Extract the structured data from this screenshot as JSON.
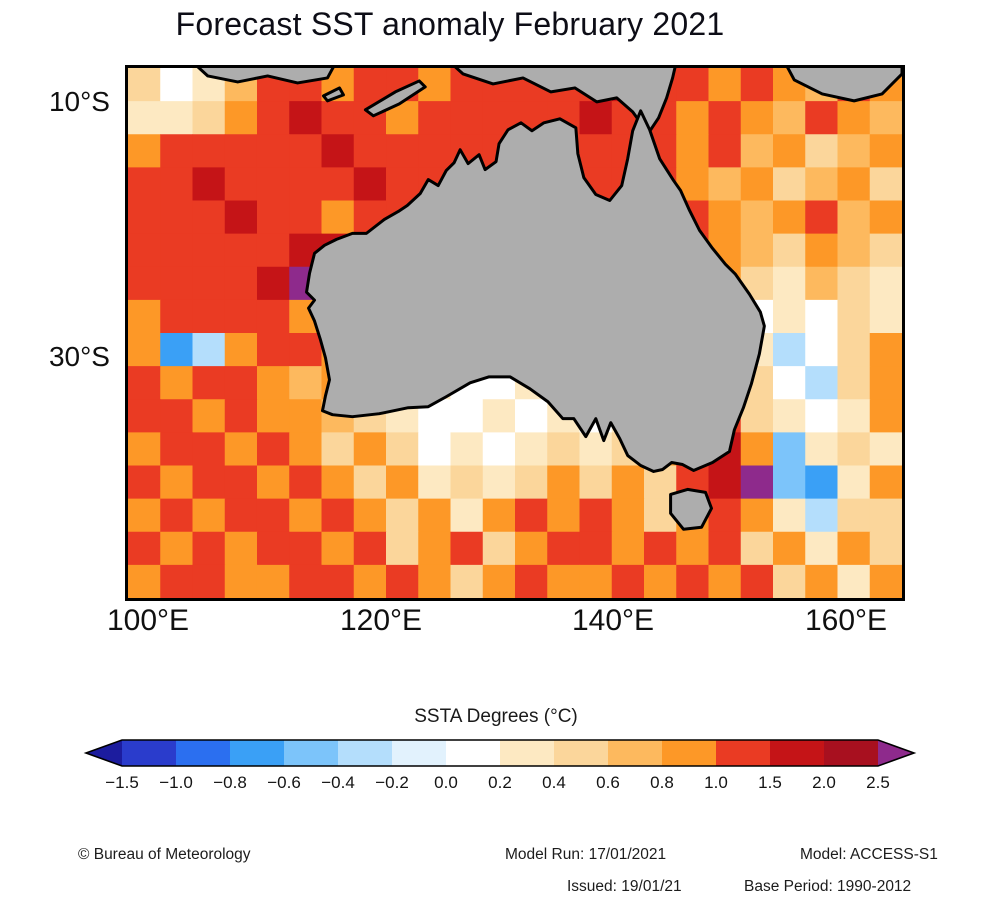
{
  "header": {
    "title": "Forecast SST anomaly February 2021"
  },
  "axes": {
    "x_ticks": [
      "100°E",
      "120°E",
      "140°E",
      "160°E"
    ],
    "y_ticks": [
      "10°S",
      "30°S"
    ]
  },
  "legend": {
    "title": "SSTA Degrees (°C)"
  },
  "footer": {
    "copyright": "© Bureau of Meteorology",
    "model_run": "Model Run: 17/01/2021",
    "model": "Model: ACCESS-S1",
    "issued": "Issued: 19/01/21",
    "base_period": "Base Period: 1990-2012"
  },
  "chart_data": {
    "type": "heatmap",
    "title": "Forecast SST anomaly February 2021",
    "units": "°C",
    "x_tick_labels": [
      "100°E",
      "120°E",
      "140°E",
      "160°E"
    ],
    "y_tick_labels": [
      "10°S",
      "30°S"
    ],
    "lon_range": [
      98.3,
      165.3
    ],
    "lat_range": [
      7.3,
      49.0
    ],
    "land_color": "#adadad",
    "coast_color": "#000000",
    "colorbar": {
      "title": "SSTA Degrees (°C)",
      "tick_labels": [
        "−1.5",
        "−1.0",
        "−0.8",
        "−0.6",
        "−0.4",
        "−0.2",
        "0.0",
        "0.2",
        "0.4",
        "0.6",
        "0.8",
        "1.0",
        "1.5",
        "2.0",
        "2.5"
      ],
      "thresholds": [
        -1.5,
        -1.0,
        -0.8,
        -0.6,
        -0.4,
        -0.2,
        0.0,
        0.2,
        0.4,
        0.6,
        0.8,
        1.0,
        1.5,
        2.0,
        2.5
      ],
      "colors": [
        "#1c1c9e",
        "#2a3ccc",
        "#2b6ff0",
        "#3aa0f6",
        "#7cc4fa",
        "#b4defc",
        "#e2f2fd",
        "#ffffff",
        "#fde9c2",
        "#fbd69b",
        "#fdb95e",
        "#fd9827",
        "#ea3b23",
        "#c51417",
        "#a8101f",
        "#8e2a8c"
      ]
    },
    "grid_layout": {
      "rows_north_to_south": true,
      "cols_west_to_east": true
    },
    "grid": [
      [
        0.5,
        0.1,
        0.3,
        0.7,
        1.2,
        1.2,
        0.9,
        1.2,
        1.2,
        0.9,
        1.2,
        1.3,
        1.2,
        1.2,
        1.3,
        1.6,
        1.2,
        1.2,
        0.9,
        1.2,
        0.9,
        0.7,
        1.2,
        0.9
      ],
      [
        0.3,
        0.3,
        0.5,
        0.9,
        1.2,
        1.6,
        1.2,
        1.2,
        0.9,
        1.2,
        1.2,
        1.2,
        1.3,
        1.2,
        1.6,
        1.2,
        1.2,
        0.9,
        1.2,
        0.9,
        0.7,
        1.2,
        0.9,
        0.7
      ],
      [
        0.9,
        1.2,
        1.2,
        1.3,
        1.2,
        1.2,
        1.6,
        1.2,
        1.2,
        1.2,
        1.2,
        1.1,
        1.2,
        1.2,
        1.2,
        1.3,
        1.2,
        0.9,
        1.2,
        0.7,
        0.9,
        0.5,
        0.7,
        0.9
      ],
      [
        1.2,
        1.3,
        1.6,
        1.2,
        1.2,
        1.2,
        1.2,
        1.6,
        1.2,
        1.2,
        1.2,
        1.2,
        1.2,
        1.2,
        1.3,
        1.2,
        1.2,
        0.9,
        0.7,
        0.9,
        0.5,
        0.7,
        0.9,
        0.5
      ],
      [
        1.2,
        1.1,
        1.2,
        1.6,
        1.2,
        1.2,
        0.9,
        1.2,
        1.2,
        1.2,
        1.2,
        1.2,
        1.2,
        1.2,
        1.2,
        1.2,
        1.2,
        1.1,
        0.9,
        0.7,
        0.9,
        1.2,
        0.7,
        0.9
      ],
      [
        1.2,
        1.2,
        1.1,
        1.2,
        1.3,
        1.6,
        1.6,
        1.2,
        1.2,
        1.2,
        1.2,
        1.2,
        1.2,
        1.2,
        1.2,
        1.2,
        1.2,
        1.2,
        0.9,
        0.7,
        0.5,
        0.9,
        0.7,
        0.5
      ],
      [
        1.2,
        1.1,
        1.2,
        1.2,
        1.8,
        2.6,
        1.2,
        1.2,
        1.2,
        1.2,
        1.2,
        1.2,
        1.2,
        1.2,
        1.2,
        1.2,
        1.2,
        1.2,
        0.9,
        0.5,
        0.3,
        0.7,
        0.5,
        0.3
      ],
      [
        0.9,
        1.2,
        1.2,
        1.1,
        1.2,
        0.9,
        1.2,
        1.2,
        1.2,
        1.2,
        1.2,
        1.2,
        1.2,
        1.2,
        1.2,
        1.2,
        1.2,
        1.2,
        0.5,
        0.1,
        0.3,
        0.1,
        0.5,
        0.3
      ],
      [
        0.9,
        -0.7,
        -0.3,
        0.9,
        1.2,
        1.1,
        0.9,
        1.2,
        1.2,
        1.2,
        1.2,
        1.2,
        1.2,
        1.2,
        1.2,
        1.2,
        1.2,
        0.9,
        0.5,
        0.3,
        -0.3,
        0.1,
        0.5,
        0.9
      ],
      [
        1.2,
        0.9,
        1.2,
        1.1,
        0.9,
        0.7,
        0.9,
        1.2,
        0.9,
        0.3,
        0.1,
        0.1,
        0.2,
        0.3,
        0.5,
        0.5,
        0.5,
        0.9,
        1.2,
        0.5,
        0.1,
        -0.3,
        0.5,
        0.9
      ],
      [
        1.2,
        1.2,
        0.9,
        1.2,
        0.9,
        0.9,
        0.7,
        0.5,
        0.3,
        0.1,
        0.1,
        0.2,
        0.1,
        0.3,
        0.1,
        0.3,
        0.5,
        0.9,
        1.2,
        0.5,
        0.3,
        0.1,
        0.3,
        0.9
      ],
      [
        0.9,
        1.2,
        1.2,
        0.9,
        1.2,
        0.9,
        0.5,
        0.9,
        0.5,
        0.1,
        0.3,
        0.1,
        0.2,
        0.5,
        0.3,
        0.5,
        0.9,
        1.2,
        1.6,
        0.9,
        -0.5,
        0.3,
        0.5,
        0.3
      ],
      [
        1.2,
        0.9,
        1.2,
        1.2,
        0.9,
        1.2,
        0.9,
        0.5,
        0.9,
        0.3,
        0.5,
        0.2,
        0.5,
        0.9,
        0.5,
        0.9,
        0.5,
        1.2,
        1.6,
        2.6,
        -0.5,
        -0.7,
        0.3,
        0.9
      ],
      [
        0.9,
        1.2,
        0.9,
        1.2,
        1.2,
        0.9,
        1.2,
        0.9,
        0.5,
        0.9,
        0.3,
        0.9,
        1.2,
        0.9,
        1.2,
        0.9,
        0.5,
        0.9,
        1.2,
        0.9,
        0.3,
        -0.3,
        0.5,
        0.5
      ],
      [
        1.2,
        0.9,
        1.2,
        0.9,
        1.2,
        1.2,
        0.9,
        1.2,
        0.5,
        0.9,
        1.2,
        0.5,
        0.9,
        1.2,
        1.2,
        0.9,
        1.2,
        0.9,
        1.2,
        0.5,
        0.9,
        0.3,
        0.9,
        0.5
      ],
      [
        0.9,
        1.2,
        1.2,
        0.9,
        0.9,
        1.2,
        1.2,
        0.9,
        1.2,
        0.9,
        0.5,
        0.9,
        1.2,
        0.9,
        0.9,
        1.2,
        0.9,
        1.2,
        0.9,
        1.2,
        0.5,
        0.9,
        0.3,
        0.9
      ]
    ]
  }
}
